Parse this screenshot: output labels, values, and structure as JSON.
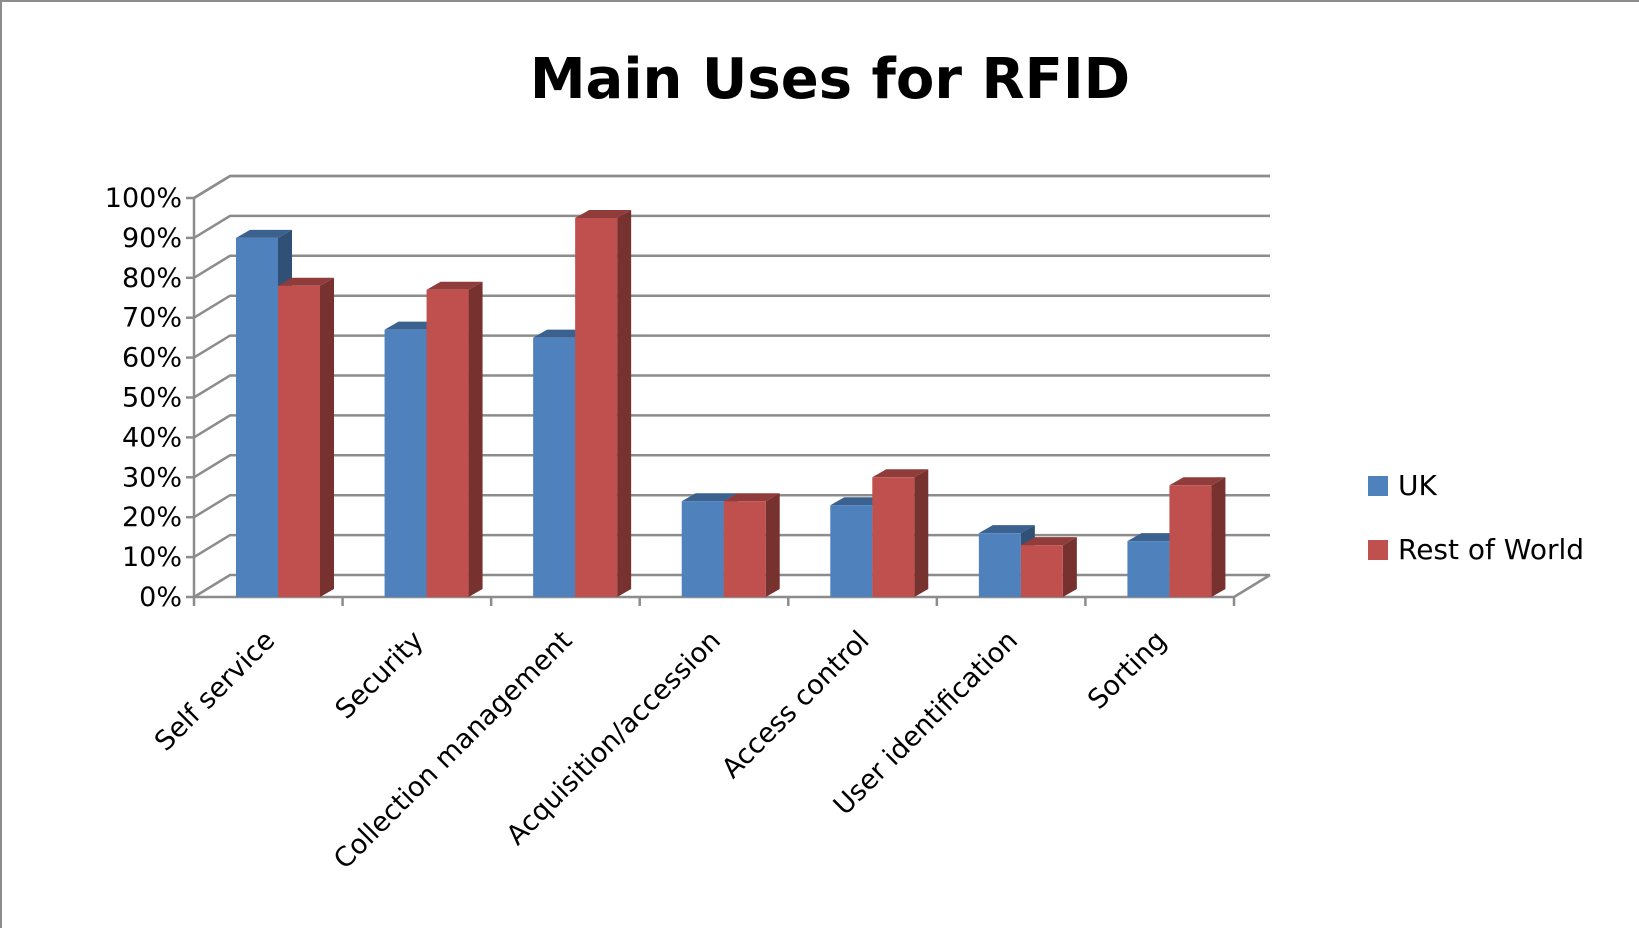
{
  "chart_data": {
    "type": "bar",
    "title": "Main Uses for RFID",
    "categories": [
      "Self service",
      "Security",
      "Collection management",
      "Acquisition/accession",
      "Access control",
      "User identification",
      "Sorting"
    ],
    "series": [
      {
        "name": "UK",
        "values": [
          90,
          67,
          65,
          24,
          23,
          16,
          14
        ],
        "color": "#4f81bd"
      },
      {
        "name": "Rest of World",
        "values": [
          78,
          77,
          95,
          24,
          30,
          13,
          28
        ],
        "color": "#c0504d"
      }
    ],
    "y_ticks": [
      "0%",
      "10%",
      "20%",
      "30%",
      "40%",
      "50%",
      "60%",
      "70%",
      "80%",
      "90%",
      "100%"
    ],
    "ylim": [
      0,
      100
    ],
    "grid": true,
    "legend_position": "right",
    "style": "3d-clustered-column"
  }
}
